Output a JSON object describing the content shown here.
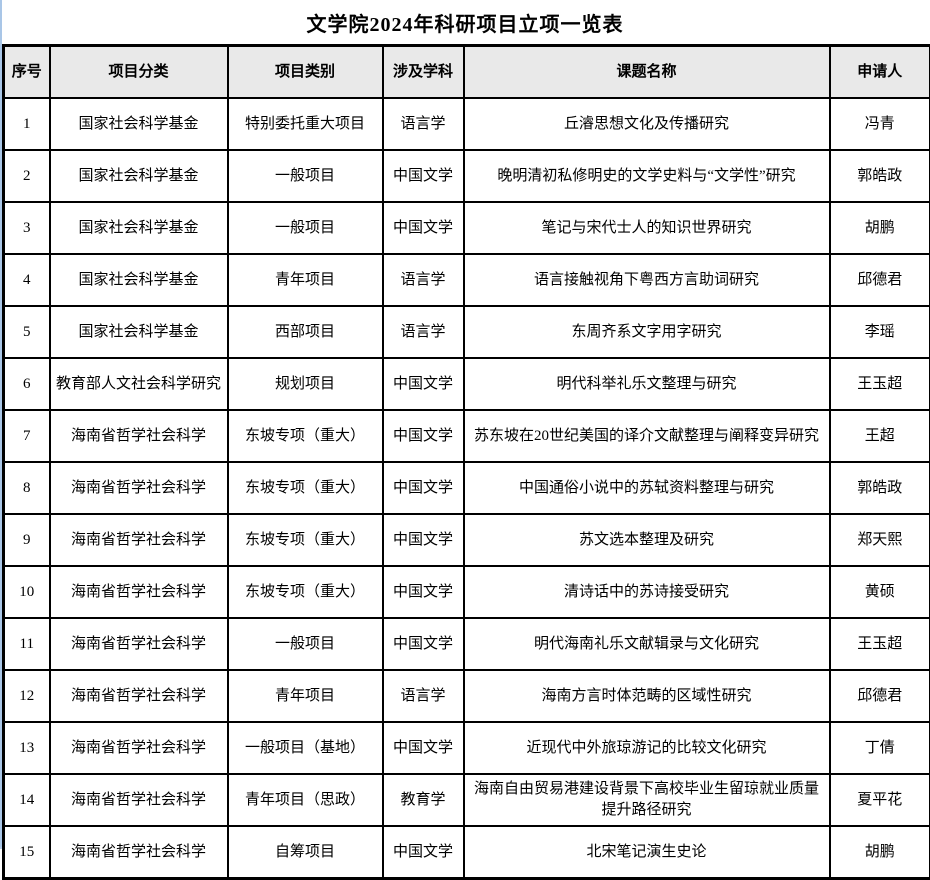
{
  "page": {
    "title": "文学院2024年科研项目立项一览表"
  },
  "colors": {
    "border": "#000000",
    "header_bg": "#e9e9e9",
    "gridline_blue": "#a9c6e7"
  },
  "table": {
    "headers": [
      "序号",
      "项目分类",
      "项目类别",
      "涉及学科",
      "课题名称",
      "申请人"
    ],
    "rows": [
      {
        "no": "1",
        "category": "国家社会科学基金",
        "type": "特别委托重大项目",
        "discipline": "语言学",
        "topic": "丘濬思想文化及传播研究",
        "applicant": "冯青"
      },
      {
        "no": "2",
        "category": "国家社会科学基金",
        "type": "一般项目",
        "discipline": "中国文学",
        "topic": "晚明清初私修明史的文学史料与“文学性”研究",
        "applicant": "郭皓政"
      },
      {
        "no": "3",
        "category": "国家社会科学基金",
        "type": "一般项目",
        "discipline": "中国文学",
        "topic": "笔记与宋代士人的知识世界研究",
        "applicant": "胡鹏"
      },
      {
        "no": "4",
        "category": "国家社会科学基金",
        "type": "青年项目",
        "discipline": "语言学",
        "topic": "语言接触视角下粤西方言助词研究",
        "applicant": "邱德君"
      },
      {
        "no": "5",
        "category": "国家社会科学基金",
        "type": "西部项目",
        "discipline": "语言学",
        "topic": "东周齐系文字用字研究",
        "applicant": "李瑶"
      },
      {
        "no": "6",
        "category": "教育部人文社会科学研究",
        "type": "规划项目",
        "discipline": "中国文学",
        "topic": "明代科举礼乐文整理与研究",
        "applicant": "王玉超"
      },
      {
        "no": "7",
        "category": "海南省哲学社会科学",
        "type": "东坡专项（重大）",
        "discipline": "中国文学",
        "topic": "苏东坡在20世纪美国的译介文献整理与阐释变异研究",
        "applicant": "王超"
      },
      {
        "no": "8",
        "category": "海南省哲学社会科学",
        "type": "东坡专项（重大）",
        "discipline": "中国文学",
        "topic": "中国通俗小说中的苏轼资料整理与研究",
        "applicant": "郭皓政"
      },
      {
        "no": "9",
        "category": "海南省哲学社会科学",
        "type": "东坡专项（重大）",
        "discipline": "中国文学",
        "topic": "苏文选本整理及研究",
        "applicant": "郑天熙"
      },
      {
        "no": "10",
        "category": "海南省哲学社会科学",
        "type": "东坡专项（重大）",
        "discipline": "中国文学",
        "topic": "清诗话中的苏诗接受研究",
        "applicant": "黄硕"
      },
      {
        "no": "11",
        "category": "海南省哲学社会科学",
        "type": "一般项目",
        "discipline": "中国文学",
        "topic": "明代海南礼乐文献辑录与文化研究",
        "applicant": "王玉超"
      },
      {
        "no": "12",
        "category": "海南省哲学社会科学",
        "type": "青年项目",
        "discipline": "语言学",
        "topic": "海南方言时体范畴的区域性研究",
        "applicant": "邱德君"
      },
      {
        "no": "13",
        "category": "海南省哲学社会科学",
        "type": "一般项目（基地）",
        "discipline": "中国文学",
        "topic": "近现代中外旅琼游记的比较文化研究",
        "applicant": "丁倩"
      },
      {
        "no": "14",
        "category": "海南省哲学社会科学",
        "type": "青年项目（思政）",
        "discipline": "教育学",
        "topic": "海南自由贸易港建设背景下高校毕业生留琼就业质量提升路径研究",
        "applicant": "夏平花"
      },
      {
        "no": "15",
        "category": "海南省哲学社会科学",
        "type": "自筹项目",
        "discipline": "中国文学",
        "topic": "北宋笔记演生史论",
        "applicant": "胡鹏"
      }
    ]
  }
}
